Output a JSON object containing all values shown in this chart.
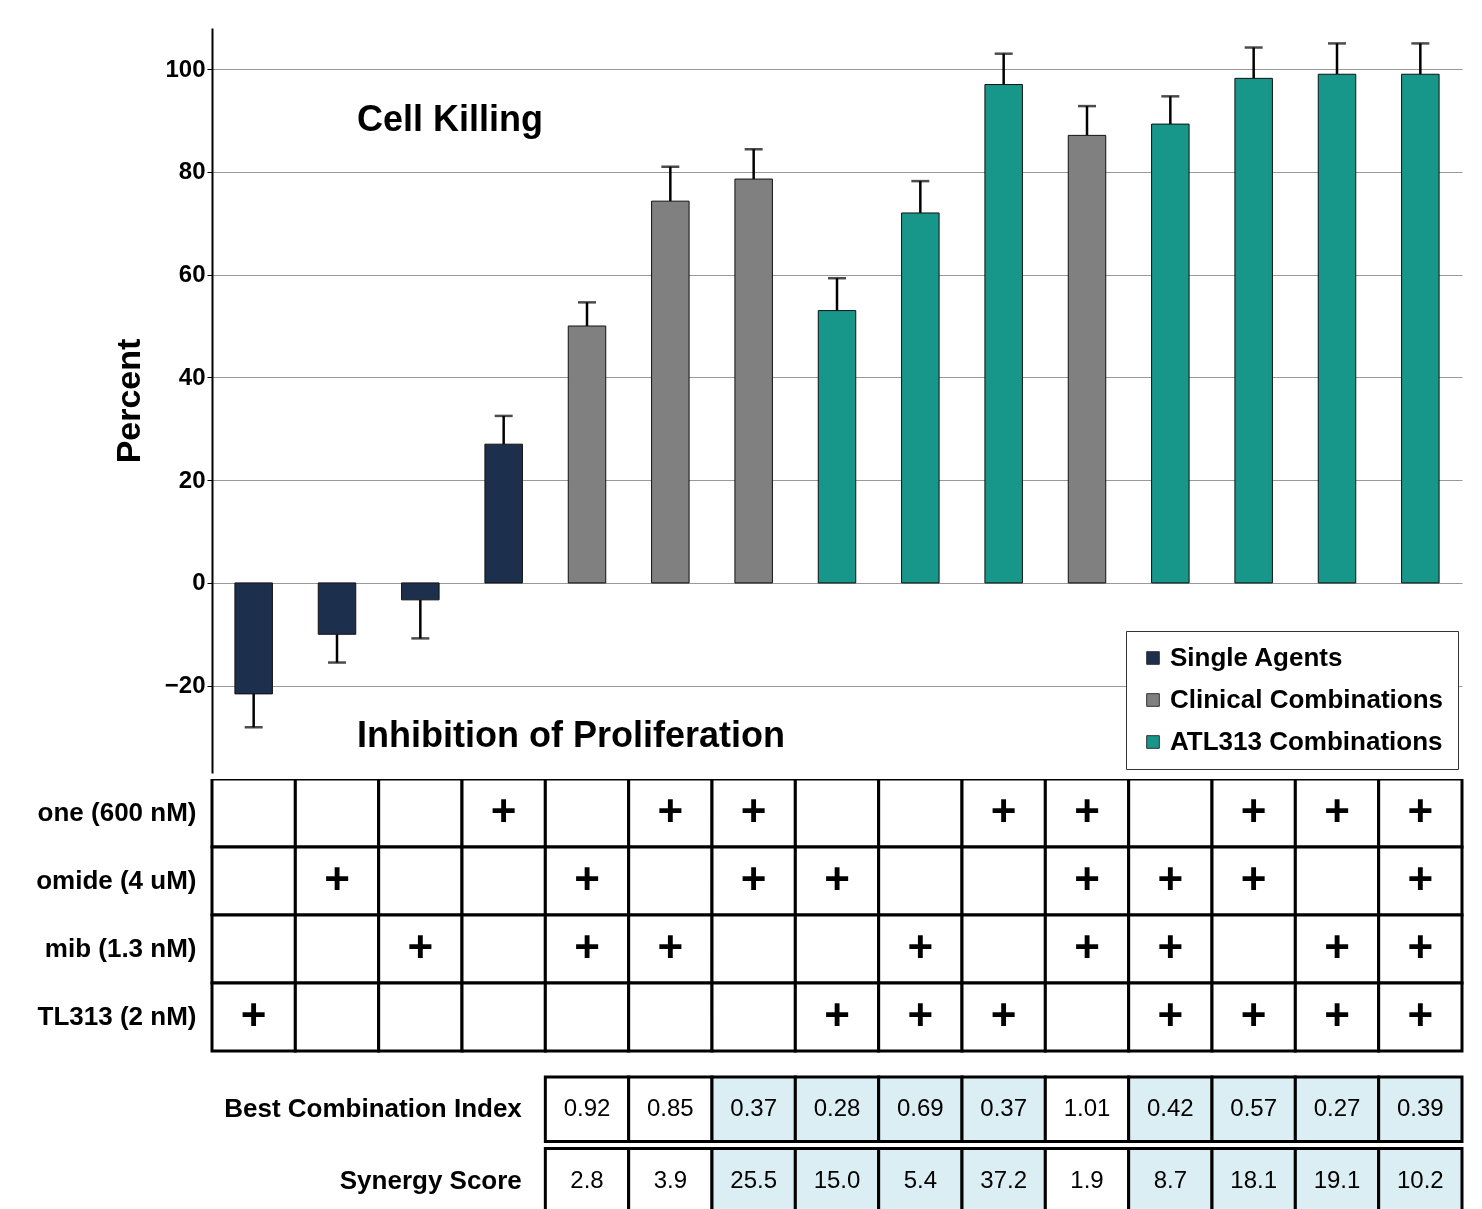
{
  "chart_data": [
    {
      "type": "bar",
      "ylabel": "Percent",
      "categories": [
        null,
        null,
        null,
        null,
        null,
        null,
        null,
        null,
        null,
        null,
        null,
        null,
        null,
        null,
        null
      ],
      "series": [
        {
          "name": "Single Agents",
          "color": "#1c2f4c",
          "values": [
            -21.6,
            -10,
            -3.3,
            27,
            null,
            null,
            null,
            null,
            null,
            null,
            null,
            null,
            null,
            null,
            null
          ],
          "errors": [
            6.5,
            5.5,
            7.5,
            5.5,
            null,
            null,
            null,
            null,
            null,
            null,
            null,
            null,
            null,
            null,
            null
          ]
        },
        {
          "name": "Clinical Combinations",
          "color": "#808080",
          "values": [
            null,
            null,
            null,
            null,
            50,
            74.3,
            78.6,
            null,
            null,
            null,
            87.1,
            null,
            null,
            null,
            null
          ],
          "errors": [
            null,
            null,
            null,
            null,
            4.6,
            6.7,
            5.8,
            null,
            null,
            null,
            5.7,
            null,
            null,
            null,
            null
          ]
        },
        {
          "name": "ATL313 Combinations",
          "color": "#17968a",
          "values": [
            null,
            null,
            null,
            null,
            null,
            null,
            null,
            53,
            72,
            97,
            null,
            89.3,
            98.2,
            99,
            99
          ],
          "errors": [
            null,
            null,
            null,
            null,
            null,
            null,
            null,
            6.3,
            6.2,
            6,
            null,
            5.4,
            6,
            6,
            6
          ]
        }
      ],
      "ylim": [
        -37,
        108
      ],
      "yticks": [
        -20,
        0,
        20,
        40,
        60,
        80,
        100
      ],
      "grid": "y",
      "legend": "bottom right",
      "annotations": [
        "Cell Killing",
        "Inhibition of Proliferation"
      ]
    },
    {
      "type": "heatmap",
      "categories": [
        null,
        null,
        null,
        null,
        null,
        null,
        null,
        null,
        null,
        null,
        null,
        null,
        null,
        null,
        null
      ],
      "y_categories": [
        "one (600 nM)",
        "omide (4 uM)",
        "mib (1.3 nM)",
        "TL313 (2 nM)"
      ],
      "cells": [
        [
          null,
          null,
          null,
          "+",
          null,
          "+",
          "+",
          null,
          null,
          "+",
          "+",
          null,
          "+",
          "+",
          "+"
        ],
        [
          null,
          "+",
          null,
          null,
          "+",
          null,
          "+",
          "+",
          null,
          null,
          "+",
          "+",
          "+",
          null,
          "+"
        ],
        [
          null,
          null,
          "+",
          null,
          "+",
          "+",
          null,
          null,
          "+",
          null,
          "+",
          "+",
          null,
          "+",
          "+"
        ],
        [
          "+",
          null,
          null,
          null,
          null,
          null,
          null,
          "+",
          "+",
          "+",
          null,
          "+",
          "+",
          "+",
          "+"
        ]
      ]
    },
    {
      "type": "heatmap",
      "categories": [
        null,
        null,
        null,
        null,
        null,
        null,
        null,
        null,
        null,
        null,
        null
      ],
      "y_categories": [
        "Best Combination Index",
        "Synergy Score"
      ],
      "cells": [
        [
          0.92,
          0.85,
          0.37,
          0.28,
          0.69,
          0.37,
          1.01,
          0.42,
          0.57,
          0.27,
          0.39
        ],
        [
          2.8,
          3.9,
          25.5,
          15.0,
          5.4,
          37.2,
          1.9,
          8.7,
          18.1,
          19.1,
          10.2
        ]
      ],
      "cell_labels": [
        [
          "0.92",
          "0.85",
          "0.37",
          "0.28",
          "0.69",
          "0.37",
          "1.01",
          "0.42",
          "0.57",
          "0.27",
          "0.39"
        ],
        [
          "2.8",
          "3.9",
          "25.5",
          "15.0",
          "5.4",
          "37.2",
          "1.9",
          "8.7",
          "18.1",
          "19.1",
          "10.2"
        ]
      ],
      "colors": [
        "#ffffff",
        "#ffffff",
        "#dbeef4",
        "#dbeef4",
        "#dbeef4",
        "#dbeef4",
        "#ffffff",
        "#dbeef4",
        "#dbeef4",
        "#dbeef4",
        "#dbeef4"
      ]
    }
  ]
}
